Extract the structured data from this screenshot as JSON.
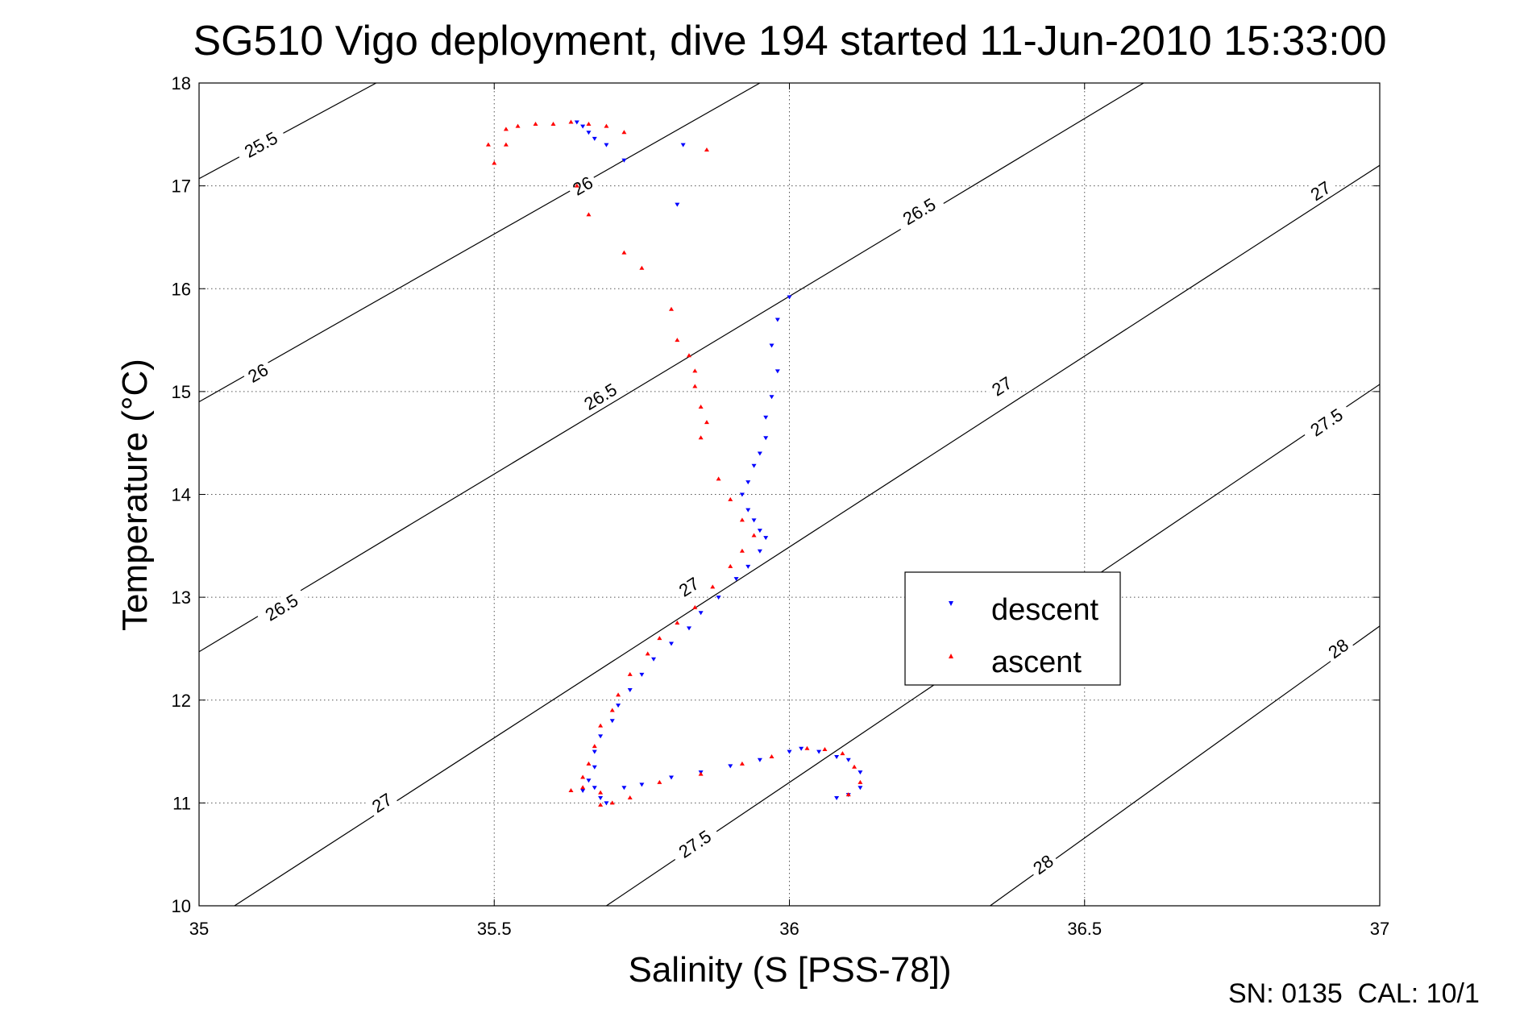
{
  "chart_data": {
    "type": "scatter",
    "title": "SG510 Vigo deployment, dive 194 started 11-Jun-2010 15:33:00",
    "xlabel": "Salinity (S [PSS-78])",
    "ylabel": "Temperature (°C)",
    "xlim": [
      35,
      37
    ],
    "ylim": [
      10,
      18
    ],
    "xticks": [
      "35",
      "35.5",
      "36",
      "36.5",
      "37"
    ],
    "yticks": [
      "10",
      "11",
      "12",
      "13",
      "14",
      "15",
      "16",
      "17",
      "18"
    ],
    "grid": true,
    "legend_position": "center-right",
    "footer": "SN: 0135  CAL: 10/1",
    "density_contours": [
      {
        "label": "25.5",
        "points": [
          [
            35,
            17.07
          ],
          [
            35.3,
            18.0
          ]
        ],
        "label_at": [
          35.105,
          17.4
        ]
      },
      {
        "label": "26",
        "points": [
          [
            35,
            14.9
          ],
          [
            35.95,
            18.0
          ]
        ],
        "label_at": [
          35.1,
          15.18
        ]
      },
      {
        "label": "26",
        "points": [
          [
            35,
            14.9
          ],
          [
            35.95,
            18.0
          ]
        ],
        "label_at": [
          35.65,
          17.0
        ]
      },
      {
        "label": "26.5",
        "points": [
          [
            35,
            12.47
          ],
          [
            36.6,
            18.0
          ]
        ],
        "label_at": [
          35.14,
          12.9
        ]
      },
      {
        "label": "26.5",
        "points": [
          [
            35,
            12.47
          ],
          [
            36.6,
            18.0
          ]
        ],
        "label_at": [
          35.68,
          14.95
        ]
      },
      {
        "label": "26.5",
        "points": [
          [
            35,
            12.47
          ],
          [
            36.6,
            18.0
          ]
        ],
        "label_at": [
          36.22,
          16.75
        ]
      },
      {
        "label": "27",
        "points": [
          [
            35.06,
            10.0
          ],
          [
            37,
            17.2
          ]
        ],
        "label_at": [
          35.31,
          11.0
        ]
      },
      {
        "label": "27",
        "points": [
          [
            35.06,
            10.0
          ],
          [
            37,
            17.2
          ]
        ],
        "label_at": [
          35.83,
          13.1
        ]
      },
      {
        "label": "27",
        "points": [
          [
            35.06,
            10.0
          ],
          [
            37,
            17.2
          ]
        ],
        "label_at": [
          36.36,
          15.05
        ]
      },
      {
        "label": "27",
        "points": [
          [
            35.06,
            10.0
          ],
          [
            37,
            17.2
          ]
        ],
        "label_at": [
          36.9,
          16.95
        ]
      },
      {
        "label": "27.5",
        "points": [
          [
            35.69,
            10.0
          ],
          [
            37,
            15.07
          ]
        ],
        "label_at": [
          35.84,
          10.6
        ]
      },
      {
        "label": "27.5",
        "points": [
          [
            35.69,
            10.0
          ],
          [
            37,
            15.07
          ]
        ],
        "label_at": [
          36.91,
          14.7
        ]
      },
      {
        "label": "28",
        "points": [
          [
            36.34,
            10.0
          ],
          [
            37,
            12.72
          ]
        ],
        "label_at": [
          36.43,
          10.4
        ]
      },
      {
        "label": "28",
        "points": [
          [
            36.34,
            10.0
          ],
          [
            37,
            12.72
          ]
        ],
        "label_at": [
          36.93,
          12.5
        ]
      }
    ],
    "series": [
      {
        "name": "descent",
        "color": "#0000ff",
        "marker": "triangle-down",
        "points": [
          [
            35.64,
            17.62
          ],
          [
            35.65,
            17.58
          ],
          [
            35.66,
            17.52
          ],
          [
            35.67,
            17.46
          ],
          [
            35.69,
            17.4
          ],
          [
            35.72,
            17.25
          ],
          [
            35.82,
            17.4
          ],
          [
            35.81,
            16.82
          ],
          [
            36.0,
            15.92
          ],
          [
            35.98,
            15.7
          ],
          [
            35.97,
            15.45
          ],
          [
            35.98,
            15.2
          ],
          [
            35.97,
            14.95
          ],
          [
            35.96,
            14.75
          ],
          [
            35.96,
            14.55
          ],
          [
            35.95,
            14.4
          ],
          [
            35.94,
            14.28
          ],
          [
            35.93,
            14.12
          ],
          [
            35.92,
            14.0
          ],
          [
            35.93,
            13.85
          ],
          [
            35.94,
            13.75
          ],
          [
            35.95,
            13.65
          ],
          [
            35.96,
            13.58
          ],
          [
            35.95,
            13.45
          ],
          [
            35.93,
            13.3
          ],
          [
            35.91,
            13.18
          ],
          [
            35.88,
            13.0
          ],
          [
            35.85,
            12.85
          ],
          [
            35.83,
            12.7
          ],
          [
            35.8,
            12.55
          ],
          [
            35.77,
            12.4
          ],
          [
            35.75,
            12.25
          ],
          [
            35.73,
            12.1
          ],
          [
            35.71,
            11.95
          ],
          [
            35.7,
            11.8
          ],
          [
            35.68,
            11.65
          ],
          [
            35.67,
            11.5
          ],
          [
            35.67,
            11.35
          ],
          [
            35.66,
            11.22
          ],
          [
            35.65,
            11.12
          ],
          [
            35.67,
            11.15
          ],
          [
            35.68,
            11.05
          ],
          [
            35.69,
            11.0
          ],
          [
            35.72,
            11.15
          ],
          [
            35.75,
            11.18
          ],
          [
            35.8,
            11.25
          ],
          [
            35.85,
            11.3
          ],
          [
            35.9,
            11.36
          ],
          [
            35.95,
            11.42
          ],
          [
            36.0,
            11.5
          ],
          [
            36.02,
            11.53
          ],
          [
            36.05,
            11.5
          ],
          [
            36.08,
            11.45
          ],
          [
            36.1,
            11.42
          ],
          [
            36.12,
            11.3
          ],
          [
            36.12,
            11.15
          ],
          [
            36.1,
            11.08
          ],
          [
            36.08,
            11.05
          ]
        ]
      },
      {
        "name": "ascent",
        "color": "#ff0000",
        "marker": "triangle-up",
        "points": [
          [
            35.49,
            17.4
          ],
          [
            35.5,
            17.22
          ],
          [
            35.52,
            17.55
          ],
          [
            35.52,
            17.4
          ],
          [
            35.54,
            17.58
          ],
          [
            35.57,
            17.6
          ],
          [
            35.6,
            17.6
          ],
          [
            35.63,
            17.62
          ],
          [
            35.66,
            17.6
          ],
          [
            35.69,
            17.58
          ],
          [
            35.72,
            17.52
          ],
          [
            35.86,
            17.35
          ],
          [
            35.64,
            17.0
          ],
          [
            35.66,
            16.72
          ],
          [
            35.72,
            16.35
          ],
          [
            35.75,
            16.2
          ],
          [
            35.8,
            15.8
          ],
          [
            35.81,
            15.5
          ],
          [
            35.83,
            15.35
          ],
          [
            35.84,
            15.2
          ],
          [
            35.84,
            15.05
          ],
          [
            35.85,
            14.85
          ],
          [
            35.86,
            14.7
          ],
          [
            35.85,
            14.55
          ],
          [
            35.88,
            14.15
          ],
          [
            35.9,
            13.95
          ],
          [
            35.92,
            13.75
          ],
          [
            35.94,
            13.6
          ],
          [
            35.92,
            13.45
          ],
          [
            35.9,
            13.3
          ],
          [
            35.87,
            13.1
          ],
          [
            35.84,
            12.9
          ],
          [
            35.81,
            12.75
          ],
          [
            35.78,
            12.6
          ],
          [
            35.76,
            12.45
          ],
          [
            35.73,
            12.25
          ],
          [
            35.71,
            12.05
          ],
          [
            35.7,
            11.9
          ],
          [
            35.68,
            11.75
          ],
          [
            35.67,
            11.55
          ],
          [
            35.66,
            11.38
          ],
          [
            35.65,
            11.25
          ],
          [
            35.63,
            11.12
          ],
          [
            35.65,
            11.15
          ],
          [
            35.68,
            11.1
          ],
          [
            35.68,
            10.98
          ],
          [
            35.7,
            11.0
          ],
          [
            35.73,
            11.05
          ],
          [
            35.78,
            11.2
          ],
          [
            35.85,
            11.28
          ],
          [
            35.92,
            11.38
          ],
          [
            35.97,
            11.45
          ],
          [
            36.03,
            11.53
          ],
          [
            36.06,
            11.52
          ],
          [
            36.09,
            11.48
          ],
          [
            36.11,
            11.35
          ],
          [
            36.12,
            11.2
          ],
          [
            36.1,
            11.08
          ]
        ]
      }
    ]
  }
}
